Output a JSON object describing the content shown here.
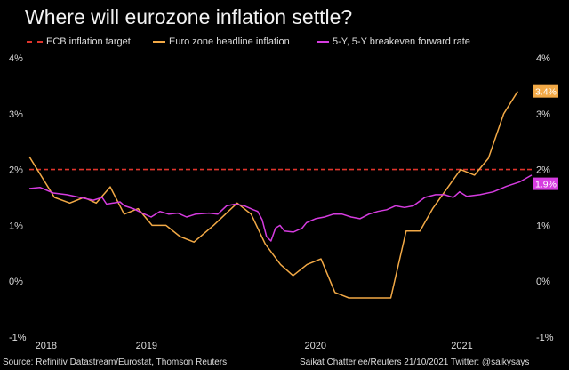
{
  "title": "Where will eurozone inflation settle?",
  "footer": {
    "source": "Source: Refinitiv Datastream/Eurostat, Thomson Reuters",
    "credit": "Saikat Chatterjee/Reuters 21/10/2021 Twitter: @saikysays"
  },
  "chart_data": {
    "type": "line",
    "title": "Where will eurozone inflation settle?",
    "ylim": [
      -1,
      4
    ],
    "xlim": [
      0,
      36
    ],
    "yticks": [
      {
        "v": 4,
        "label": "4%"
      },
      {
        "v": 3,
        "label": "3%"
      },
      {
        "v": 2,
        "label": "2%"
      },
      {
        "v": 1,
        "label": "1%"
      },
      {
        "v": 0,
        "label": "0%"
      },
      {
        "v": -1,
        "label": "-1%"
      }
    ],
    "xticks": [
      {
        "v": 1.2,
        "label": "2018"
      },
      {
        "v": 8.4,
        "label": "2019"
      },
      {
        "v": 20.5,
        "label": "2020"
      },
      {
        "v": 31,
        "label": "2021"
      }
    ],
    "legend_placement": "top",
    "series": [
      {
        "name": "ECB inflation target",
        "color": "#e0342c",
        "style": "dashed",
        "points": [
          [
            0,
            2
          ],
          [
            36,
            2
          ]
        ]
      },
      {
        "name": "Euro zone headline inflation",
        "color": "#f2a946",
        "style": "solid",
        "end_label": "3.4%",
        "points": [
          [
            0,
            2.23
          ],
          [
            1.8,
            1.5
          ],
          [
            2.9,
            1.4
          ],
          [
            3.9,
            1.5
          ],
          [
            4.8,
            1.4
          ],
          [
            5.8,
            1.69
          ],
          [
            6.8,
            1.2
          ],
          [
            7.8,
            1.3
          ],
          [
            8.8,
            1.0
          ],
          [
            9.8,
            1.0
          ],
          [
            10.8,
            0.8
          ],
          [
            11.8,
            0.7
          ],
          [
            13.2,
            1.0
          ],
          [
            14.9,
            1.4
          ],
          [
            15.9,
            1.2
          ],
          [
            16.9,
            0.67
          ],
          [
            18,
            0.3
          ],
          [
            18.9,
            0.1
          ],
          [
            19.9,
            0.3
          ],
          [
            20.9,
            0.4
          ],
          [
            21.9,
            -0.2
          ],
          [
            22.9,
            -0.3
          ],
          [
            25.9,
            -0.3
          ],
          [
            27,
            0.9
          ],
          [
            28,
            0.9
          ],
          [
            28.9,
            1.3
          ],
          [
            30.9,
            2.0
          ],
          [
            31.9,
            1.9
          ],
          [
            32.9,
            2.2
          ],
          [
            34,
            3.0
          ],
          [
            35,
            3.4
          ]
        ]
      },
      {
        "name": "5-Y, 5-Y breakeven forward rate",
        "color": "#d63ce0",
        "style": "solid",
        "end_label": "1.9%",
        "points": [
          [
            0,
            1.66
          ],
          [
            0.76,
            1.68
          ],
          [
            1.72,
            1.58
          ],
          [
            2.68,
            1.55
          ],
          [
            3.63,
            1.5
          ],
          [
            4.59,
            1.45
          ],
          [
            5.22,
            1.5
          ],
          [
            5.54,
            1.38
          ],
          [
            6.5,
            1.42
          ],
          [
            6.82,
            1.35
          ],
          [
            7.45,
            1.3
          ],
          [
            8.09,
            1.22
          ],
          [
            8.73,
            1.15
          ],
          [
            9.36,
            1.25
          ],
          [
            10,
            1.2
          ],
          [
            10.64,
            1.22
          ],
          [
            11.27,
            1.15
          ],
          [
            11.91,
            1.2
          ],
          [
            12.87,
            1.22
          ],
          [
            13.5,
            1.2
          ],
          [
            14.14,
            1.35
          ],
          [
            14.78,
            1.38
          ],
          [
            15.41,
            1.35
          ],
          [
            16.05,
            1.28
          ],
          [
            16.37,
            1.25
          ],
          [
            16.69,
            1.1
          ],
          [
            17,
            0.8
          ],
          [
            17.32,
            0.72
          ],
          [
            17.64,
            0.95
          ],
          [
            17.96,
            1.0
          ],
          [
            18.28,
            0.9
          ],
          [
            18.92,
            0.88
          ],
          [
            19.55,
            0.95
          ],
          [
            19.87,
            1.05
          ],
          [
            20.51,
            1.12
          ],
          [
            21.15,
            1.15
          ],
          [
            21.78,
            1.2
          ],
          [
            22.42,
            1.2
          ],
          [
            23.06,
            1.15
          ],
          [
            23.69,
            1.12
          ],
          [
            24.33,
            1.2
          ],
          [
            24.97,
            1.25
          ],
          [
            25.61,
            1.28
          ],
          [
            26.24,
            1.35
          ],
          [
            26.88,
            1.32
          ],
          [
            27.52,
            1.35
          ],
          [
            28.34,
            1.5
          ],
          [
            29.11,
            1.55
          ],
          [
            29.75,
            1.55
          ],
          [
            30.38,
            1.5
          ],
          [
            30.83,
            1.6
          ],
          [
            31.34,
            1.52
          ],
          [
            32.29,
            1.55
          ],
          [
            33.25,
            1.6
          ],
          [
            34.2,
            1.7
          ],
          [
            35.16,
            1.78
          ],
          [
            36,
            1.9
          ]
        ]
      }
    ]
  }
}
